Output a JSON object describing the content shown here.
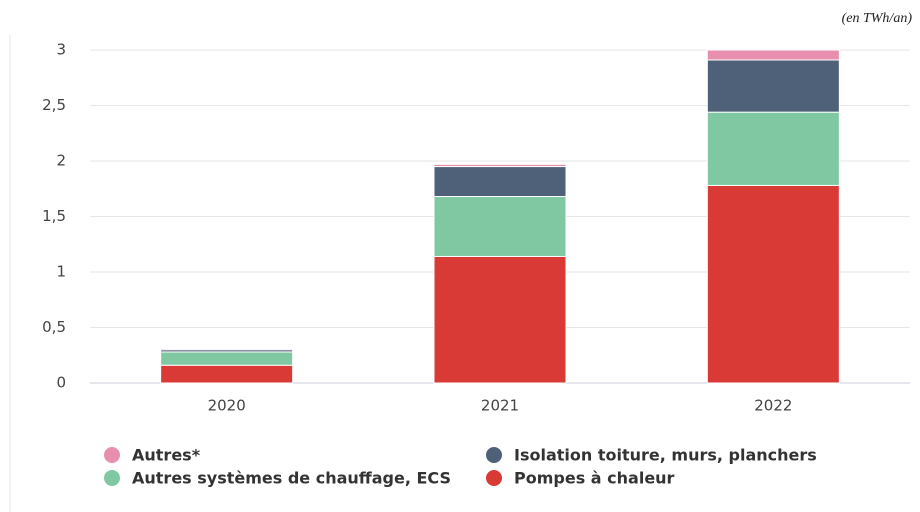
{
  "chart_data": {
    "type": "stacked_bar",
    "unit": "(en TWh/an)",
    "categories": [
      "2020",
      "2021",
      "2022"
    ],
    "series": [
      {
        "name": "Autres*",
        "color": "#e88fb0",
        "values": [
          0.01,
          0.02,
          0.09
        ]
      },
      {
        "name": "Isolation toiture, murs, planchers",
        "color": "#4f6178",
        "values": [
          0.02,
          0.27,
          0.47
        ]
      },
      {
        "name": "Autres systèmes de chauffage, ECS",
        "color": "#7fc8a2",
        "values": [
          0.12,
          0.54,
          0.66
        ]
      },
      {
        "name": "Pompes à chaleur",
        "color": "#d93a36",
        "values": [
          0.16,
          1.14,
          1.78
        ]
      }
    ],
    "ylim": [
      0,
      3
    ],
    "yticks": [
      0,
      {
        "value": 0.5,
        "label": "0,5"
      },
      1,
      {
        "value": 1.5,
        "label": "1,5"
      },
      2,
      {
        "value": 2.5,
        "label": "2,5"
      },
      3
    ],
    "grid": true
  }
}
